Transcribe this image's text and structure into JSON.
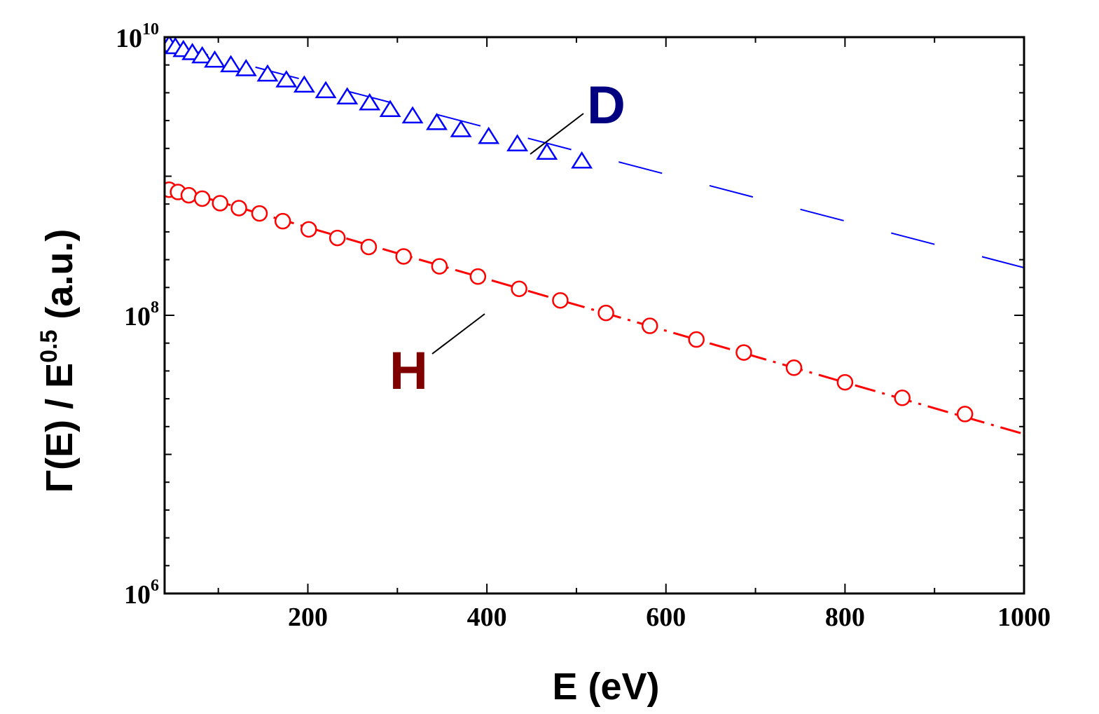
{
  "chart_data": {
    "type": "scatter",
    "xlabel": "E (eV)",
    "ylabel": {
      "base": "Γ(E) / E",
      "exponent": "0.5",
      "suffix": " (a.u.)"
    },
    "xlim": [
      40,
      1000
    ],
    "ylim": [
      1000000,
      10000000000
    ],
    "yscale": "log",
    "grid": false,
    "x_ticks": [
      {
        "value": 200,
        "label": "200"
      },
      {
        "value": 400,
        "label": "400"
      },
      {
        "value": 600,
        "label": "600"
      },
      {
        "value": 800,
        "label": "800"
      },
      {
        "value": 1000,
        "label": "1000"
      }
    ],
    "y_ticks": [
      {
        "value": 1000000,
        "base": "10",
        "exp": "6"
      },
      {
        "value": 100000000,
        "base": "10",
        "exp": "8"
      },
      {
        "value": 10000000000,
        "base": "10",
        "exp": "10"
      }
    ],
    "series": [
      {
        "name": "D",
        "color": "#0000ff",
        "label_color": "#000080",
        "marker": "triangle",
        "line_style": "dashed",
        "x": [
          45,
          52,
          61,
          71,
          82,
          96,
          114,
          131,
          155,
          176,
          196,
          220,
          244,
          269,
          292,
          317,
          344,
          371,
          402,
          434,
          467,
          506
        ],
        "y": [
          8800000000.0,
          8500000000.0,
          8100000000.0,
          7700000000.0,
          7300000000.0,
          6800000000.0,
          6300000000.0,
          5900000000.0,
          5400000000.0,
          4900000000.0,
          4500000000.0,
          4100000000.0,
          3700000000.0,
          3350000000.0,
          3000000000.0,
          2700000000.0,
          2420000000.0,
          2150000000.0,
          1920000000.0,
          1700000000.0,
          1480000000.0,
          1280000000.0
        ],
        "fit": {
          "x": [
            40,
            1000
          ],
          "y": [
            9000000000.0,
            220000000.0
          ]
        }
      },
      {
        "name": "H",
        "color": "#ff0000",
        "label_color": "#800000",
        "marker": "circle",
        "line_style": "dash-dot",
        "x": [
          45,
          55,
          67,
          82,
          102,
          123,
          146,
          172,
          201,
          233,
          268,
          307,
          347,
          390,
          436,
          482,
          533,
          582,
          634,
          687,
          743,
          800,
          864,
          934
        ],
        "y": [
          800000000.0,
          770000000.0,
          730000000.0,
          690000000.0,
          640000000.0,
          590000000.0,
          540000000.0,
          475000000.0,
          415000000.0,
          360000000.0,
          310000000.0,
          265000000.0,
          225000000.0,
          190000000.0,
          155000000.0,
          128000000.0,
          104000000.0,
          84000000.0,
          67000000.0,
          54000000.0,
          42000000.0,
          33000000.0,
          25500000.0,
          19500000.0
        ],
        "fit": {
          "x": [
            40,
            1000
          ],
          "y": [
            850000000.0,
            14000000.0
          ]
        }
      }
    ]
  }
}
